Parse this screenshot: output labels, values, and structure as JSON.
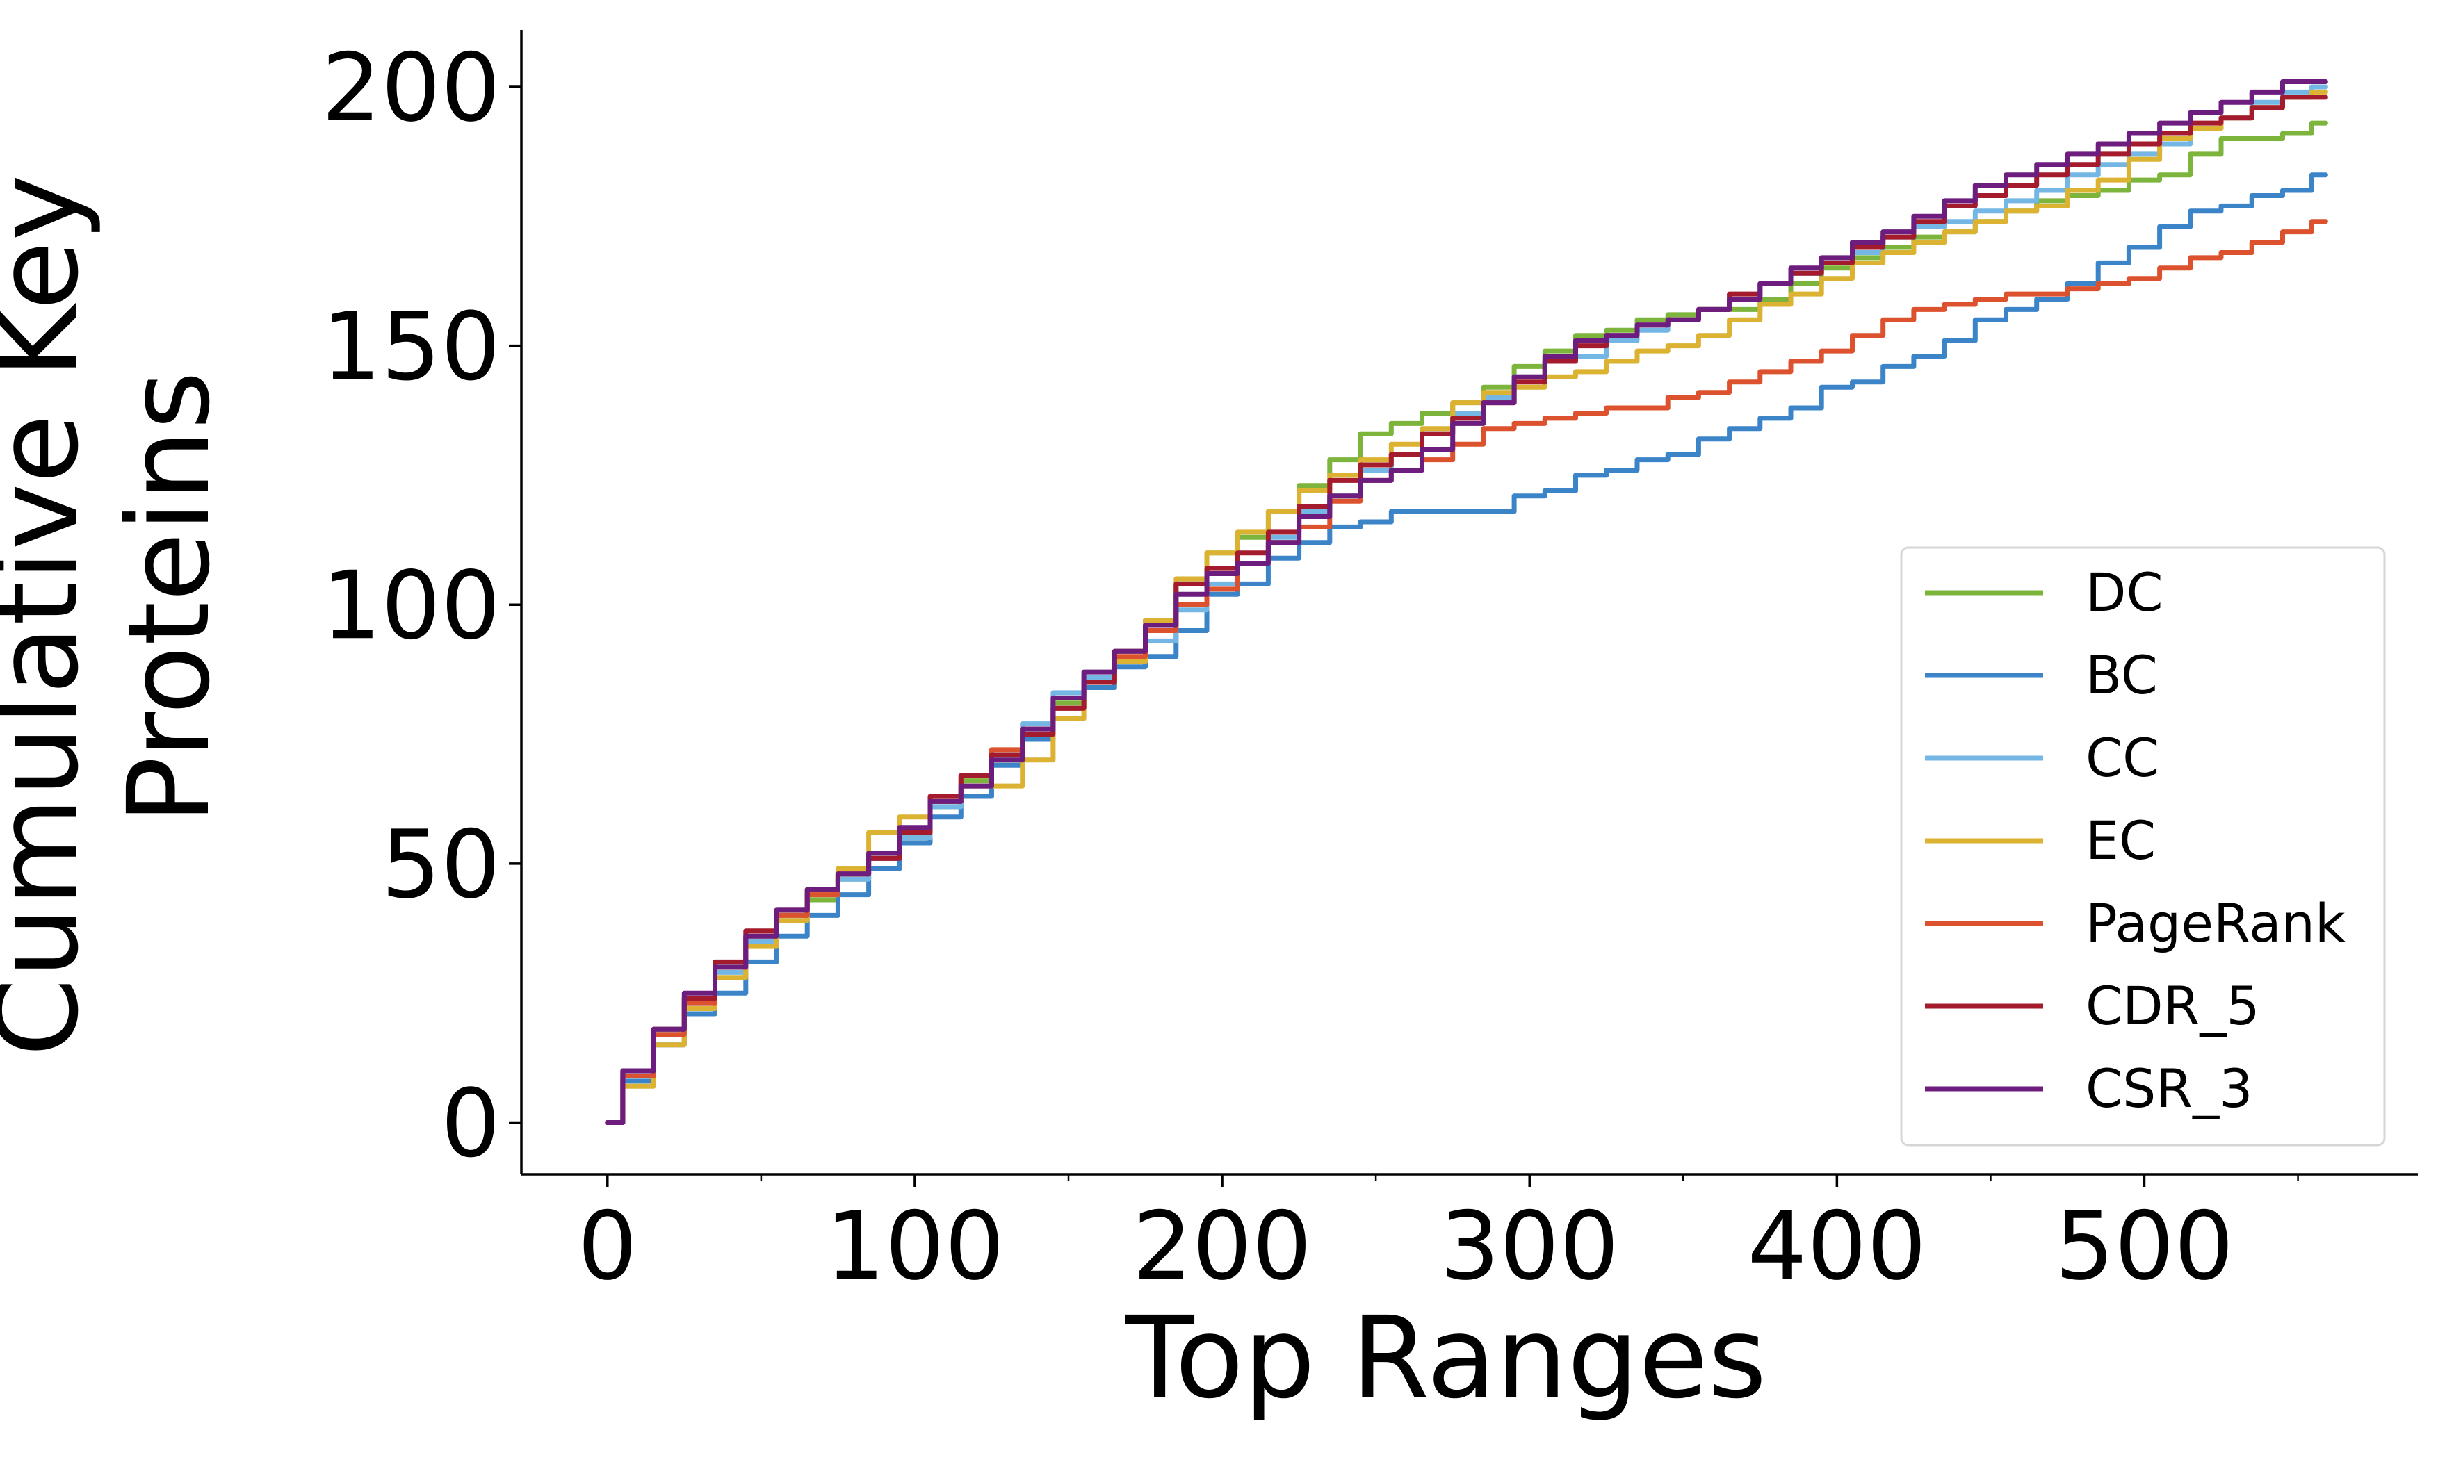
{
  "chart_data": {
    "type": "line",
    "title": "",
    "xlabel": "Top Ranges",
    "ylabel": "Cumulative Key Proteins",
    "ylabel_lines": [
      "Cumulative Key",
      "Proteins"
    ],
    "xlim": [
      -28,
      589
    ],
    "ylim": [
      -10,
      211
    ],
    "xticks": [
      0,
      100,
      200,
      300,
      400,
      500
    ],
    "xtick_labels": [
      "0",
      "100",
      "200",
      "300",
      "400",
      "500"
    ],
    "yticks": [
      0,
      50,
      100,
      150,
      200
    ],
    "ytick_labels": [
      "0",
      "50",
      "100",
      "150",
      "200"
    ],
    "x_minor_ticks": [
      50,
      150,
      250,
      350,
      450,
      550
    ],
    "grid": false,
    "legend_position": "lower-right",
    "series": [
      {
        "name": "DC",
        "color": "#7db53c",
        "x": [
          0,
          10,
          20,
          30,
          40,
          50,
          60,
          70,
          80,
          90,
          100,
          110,
          120,
          130,
          140,
          150,
          160,
          170,
          180,
          190,
          200,
          210,
          220,
          230,
          240,
          250,
          260,
          270,
          280,
          290,
          300,
          310,
          320,
          330,
          340,
          350,
          360,
          370,
          380,
          390,
          400,
          410,
          420,
          430,
          440,
          450,
          460,
          470,
          480,
          490,
          500,
          510,
          520,
          530,
          540,
          550,
          559
        ],
        "y": [
          0,
          10,
          18,
          24,
          30,
          35,
          40,
          43,
          47,
          52,
          55,
          61,
          66,
          70,
          74,
          81,
          86,
          91,
          97,
          104,
          110,
          113,
          118,
          123,
          128,
          133,
          135,
          137,
          139,
          142,
          146,
          149,
          152,
          153,
          155,
          156,
          157,
          157,
          159,
          162,
          165,
          167,
          169,
          171,
          172,
          174,
          176,
          178,
          179,
          180,
          182,
          183,
          187,
          190,
          190,
          191,
          193
        ]
      },
      {
        "name": "BC",
        "color": "#3b84c8",
        "x": [
          0,
          10,
          20,
          30,
          40,
          50,
          60,
          70,
          80,
          90,
          100,
          110,
          120,
          130,
          140,
          150,
          160,
          170,
          180,
          190,
          200,
          210,
          220,
          230,
          240,
          250,
          260,
          270,
          280,
          290,
          300,
          310,
          320,
          330,
          340,
          350,
          360,
          370,
          380,
          390,
          400,
          410,
          420,
          430,
          440,
          450,
          460,
          470,
          480,
          490,
          500,
          510,
          520,
          530,
          540,
          550,
          559
        ],
        "y": [
          0,
          8,
          15,
          21,
          25,
          31,
          36,
          40,
          44,
          49,
          54,
          59,
          63,
          69,
          74,
          80,
          84,
          88,
          90,
          95,
          102,
          104,
          109,
          112,
          115,
          116,
          118,
          118,
          118,
          118,
          121,
          122,
          125,
          126,
          128,
          129,
          132,
          134,
          136,
          138,
          142,
          143,
          146,
          148,
          151,
          155,
          157,
          159,
          162,
          166,
          169,
          173,
          176,
          177,
          179,
          180,
          183
        ]
      },
      {
        "name": "CC",
        "color": "#74b7e4",
        "x": [
          0,
          10,
          20,
          30,
          40,
          50,
          60,
          70,
          80,
          90,
          100,
          110,
          120,
          130,
          140,
          150,
          160,
          170,
          180,
          190,
          200,
          210,
          220,
          230,
          240,
          250,
          260,
          270,
          280,
          290,
          300,
          310,
          320,
          330,
          340,
          350,
          360,
          370,
          380,
          390,
          400,
          410,
          420,
          430,
          440,
          450,
          460,
          470,
          480,
          490,
          500,
          510,
          520,
          530,
          540,
          550,
          559
        ],
        "y": [
          0,
          9,
          17,
          23,
          29,
          35,
          39,
          44,
          47,
          51,
          55,
          61,
          65,
          71,
          77,
          83,
          86,
          89,
          93,
          99,
          104,
          108,
          113,
          118,
          121,
          126,
          129,
          133,
          137,
          140,
          144,
          147,
          148,
          151,
          153,
          155,
          157,
          159,
          162,
          164,
          166,
          168,
          171,
          173,
          174,
          176,
          178,
          180,
          183,
          185,
          187,
          189,
          192,
          194,
          197,
          199,
          200
        ]
      },
      {
        "name": "EC",
        "color": "#dcb232",
        "x": [
          0,
          10,
          20,
          30,
          40,
          50,
          60,
          70,
          80,
          90,
          100,
          110,
          120,
          130,
          140,
          150,
          160,
          170,
          180,
          190,
          200,
          210,
          220,
          230,
          240,
          250,
          260,
          270,
          280,
          290,
          300,
          310,
          320,
          330,
          340,
          350,
          360,
          370,
          380,
          390,
          400,
          410,
          420,
          430,
          440,
          450,
          460,
          470,
          480,
          490,
          500,
          510,
          520,
          530,
          540,
          550,
          559
        ],
        "y": [
          0,
          7,
          15,
          22,
          28,
          34,
          39,
          44,
          49,
          56,
          59,
          62,
          65,
          65,
          70,
          78,
          85,
          89,
          97,
          105,
          110,
          114,
          118,
          122,
          125,
          128,
          131,
          134,
          139,
          141,
          142,
          144,
          145,
          147,
          149,
          150,
          152,
          155,
          158,
          160,
          163,
          166,
          168,
          170,
          172,
          174,
          176,
          177,
          180,
          182,
          186,
          190,
          192,
          194,
          196,
          198,
          199
        ]
      },
      {
        "name": "PageRank",
        "color": "#dc522e",
        "x": [
          0,
          10,
          20,
          30,
          40,
          50,
          60,
          70,
          80,
          90,
          100,
          110,
          120,
          130,
          140,
          150,
          160,
          170,
          180,
          190,
          200,
          210,
          220,
          230,
          240,
          250,
          260,
          270,
          280,
          290,
          300,
          310,
          320,
          330,
          340,
          350,
          360,
          370,
          380,
          390,
          400,
          410,
          420,
          430,
          440,
          450,
          460,
          470,
          480,
          490,
          500,
          510,
          520,
          530,
          540,
          550,
          559
        ],
        "y": [
          0,
          9,
          17,
          23,
          30,
          36,
          40,
          44,
          48,
          52,
          56,
          62,
          67,
          72,
          76,
          80,
          85,
          90,
          95,
          100,
          103,
          108,
          112,
          115,
          120,
          124,
          126,
          128,
          131,
          134,
          135,
          136,
          137,
          138,
          138,
          140,
          141,
          143,
          145,
          147,
          149,
          152,
          155,
          157,
          158,
          159,
          160,
          160,
          161,
          162,
          163,
          165,
          167,
          168,
          170,
          172,
          174
        ]
      },
      {
        "name": "CDR_5",
        "color": "#a31b2d",
        "x": [
          0,
          10,
          20,
          30,
          40,
          50,
          60,
          70,
          80,
          90,
          100,
          110,
          120,
          130,
          140,
          150,
          160,
          170,
          180,
          190,
          200,
          210,
          220,
          230,
          240,
          250,
          260,
          270,
          280,
          290,
          300,
          310,
          320,
          330,
          340,
          350,
          360,
          370,
          380,
          390,
          400,
          410,
          420,
          430,
          440,
          450,
          460,
          470,
          480,
          490,
          500,
          510,
          520,
          530,
          540,
          550,
          559
        ],
        "y": [
          0,
          10,
          18,
          24,
          31,
          37,
          41,
          45,
          48,
          51,
          56,
          63,
          67,
          71,
          75,
          80,
          85,
          91,
          96,
          104,
          107,
          110,
          114,
          119,
          124,
          127,
          129,
          133,
          136,
          139,
          143,
          147,
          150,
          152,
          154,
          155,
          157,
          160,
          162,
          164,
          166,
          169,
          171,
          174,
          177,
          179,
          181,
          183,
          185,
          187,
          189,
          191,
          193,
          194,
          196,
          198,
          198
        ]
      },
      {
        "name": "CSR_3",
        "color": "#6d1d7e",
        "x": [
          0,
          10,
          20,
          30,
          40,
          50,
          60,
          70,
          80,
          90,
          100,
          110,
          120,
          130,
          140,
          150,
          160,
          170,
          180,
          190,
          200,
          210,
          220,
          230,
          240,
          250,
          260,
          270,
          280,
          290,
          300,
          310,
          320,
          330,
          340,
          350,
          360,
          370,
          380,
          390,
          400,
          410,
          420,
          430,
          440,
          450,
          460,
          470,
          480,
          490,
          500,
          510,
          520,
          530,
          540,
          550,
          559
        ],
        "y": [
          0,
          10,
          18,
          25,
          30,
          36,
          41,
          45,
          48,
          52,
          57,
          62,
          65,
          70,
          76,
          82,
          87,
          91,
          96,
          102,
          106,
          108,
          112,
          117,
          121,
          124,
          126,
          130,
          135,
          139,
          144,
          148,
          151,
          152,
          154,
          155,
          157,
          159,
          162,
          165,
          167,
          170,
          172,
          175,
          178,
          181,
          183,
          185,
          187,
          189,
          191,
          193,
          195,
          197,
          199,
          201,
          201
        ]
      }
    ]
  }
}
